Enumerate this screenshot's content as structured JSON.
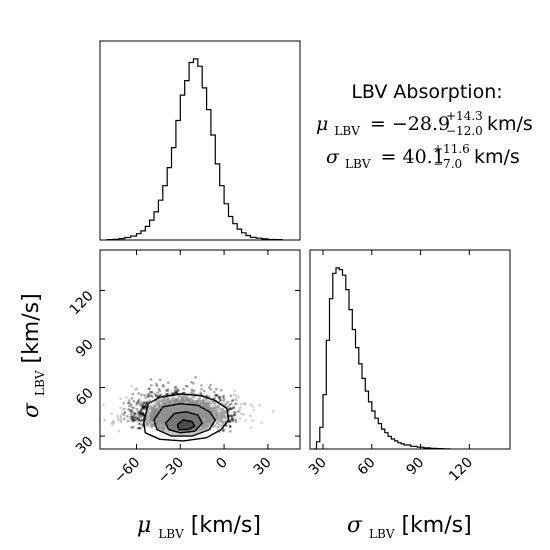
{
  "chart_data": [
    {
      "type": "histogram",
      "panel": "mu_LBV marginal",
      "x_range": [
        -85,
        52
      ],
      "bins": [
        [
          -80,
          0.002
        ],
        [
          -76,
          0.004
        ],
        [
          -72,
          0.008
        ],
        [
          -68,
          0.014
        ],
        [
          -64,
          0.022
        ],
        [
          -60,
          0.035
        ],
        [
          -57,
          0.05
        ],
        [
          -54,
          0.075
        ],
        [
          -51,
          0.11
        ],
        [
          -48,
          0.155
        ],
        [
          -45,
          0.22
        ],
        [
          -42,
          0.3
        ],
        [
          -39,
          0.4
        ],
        [
          -36,
          0.51
        ],
        [
          -33,
          0.66
        ],
        [
          -30,
          0.8
        ],
        [
          -27,
          0.88
        ],
        [
          -24,
          0.98
        ],
        [
          -21,
          1.0
        ],
        [
          -18,
          0.96
        ],
        [
          -15,
          0.84
        ],
        [
          -12,
          0.72
        ],
        [
          -9,
          0.58
        ],
        [
          -6,
          0.42
        ],
        [
          -3,
          0.3
        ],
        [
          0,
          0.2
        ],
        [
          3,
          0.13
        ],
        [
          6,
          0.09
        ],
        [
          9,
          0.06
        ],
        [
          12,
          0.04
        ],
        [
          15,
          0.025
        ],
        [
          18,
          0.015
        ],
        [
          22,
          0.01
        ],
        [
          26,
          0.006
        ],
        [
          30,
          0.003
        ],
        [
          35,
          0.002
        ]
      ]
    },
    {
      "type": "scatter",
      "panel": "joint mu_LBV vs sigma_LBV",
      "xlim": [
        -85,
        52
      ],
      "ylim": [
        22,
        145
      ],
      "x_ticks": [
        -60,
        -30,
        0,
        30
      ],
      "y_ticks": [
        30,
        60,
        90,
        120
      ],
      "xlabel_symbol": "μ",
      "xlabel_sub": "LBV",
      "xlabel_unit": "[km/s]",
      "ylabel_symbol": "σ",
      "ylabel_sub": "LBV",
      "ylabel_unit": "[km/s]",
      "center": [
        -28.9,
        40
      ],
      "contours": [
        {
          "level": "outer",
          "points": [
            [
              -55,
              38
            ],
            [
              -52,
              50
            ],
            [
              -44,
              54
            ],
            [
              -30,
              56
            ],
            [
              -16,
              55
            ],
            [
              -6,
              52
            ],
            [
              2,
              47
            ],
            [
              3,
              40
            ],
            [
              -2,
              34
            ],
            [
              -12,
              29
            ],
            [
              -28,
              27
            ],
            [
              -44,
              28
            ],
            [
              -54,
              32
            ]
          ]
        },
        {
          "level": "middle",
          "points": [
            [
              -48,
              40
            ],
            [
              -42,
              48
            ],
            [
              -30,
              50
            ],
            [
              -18,
              49
            ],
            [
              -10,
              45
            ],
            [
              -6,
              40
            ],
            [
              -10,
              34
            ],
            [
              -22,
              30
            ],
            [
              -36,
              30
            ],
            [
              -46,
              34
            ]
          ]
        },
        {
          "level": "inner",
          "points": [
            [
              -40,
              38
            ],
            [
              -34,
              44
            ],
            [
              -26,
              45
            ],
            [
              -18,
              43
            ],
            [
              -15,
              38
            ],
            [
              -20,
              33
            ],
            [
              -30,
              32
            ],
            [
              -38,
              34
            ]
          ]
        },
        {
          "level": "core",
          "points": [
            [
              -32,
              37
            ],
            [
              -28,
              40
            ],
            [
              -22,
              39
            ],
            [
              -20,
              36
            ],
            [
              -25,
              34
            ],
            [
              -31,
              34
            ]
          ]
        }
      ]
    },
    {
      "type": "histogram",
      "panel": "sigma_LBV marginal",
      "x_range": [
        22,
        145
      ],
      "x_ticks": [
        30,
        60,
        90,
        120
      ],
      "xlabel_symbol": "σ",
      "xlabel_sub": "LBV",
      "xlabel_unit": "[km/s]",
      "bins": [
        [
          24,
          0.0
        ],
        [
          26,
          0.04
        ],
        [
          28,
          0.12
        ],
        [
          30,
          0.3
        ],
        [
          32,
          0.6
        ],
        [
          34,
          0.83
        ],
        [
          36,
          0.97
        ],
        [
          38,
          1.0
        ],
        [
          40,
          0.99
        ],
        [
          42,
          0.96
        ],
        [
          44,
          0.88
        ],
        [
          46,
          0.77
        ],
        [
          48,
          0.66
        ],
        [
          50,
          0.56
        ],
        [
          52,
          0.47
        ],
        [
          54,
          0.39
        ],
        [
          56,
          0.32
        ],
        [
          58,
          0.26
        ],
        [
          60,
          0.21
        ],
        [
          62,
          0.17
        ],
        [
          64,
          0.14
        ],
        [
          66,
          0.11
        ],
        [
          68,
          0.09
        ],
        [
          70,
          0.07
        ],
        [
          72,
          0.055
        ],
        [
          74,
          0.045
        ],
        [
          76,
          0.035
        ],
        [
          78,
          0.028
        ],
        [
          80,
          0.022
        ],
        [
          84,
          0.015
        ],
        [
          88,
          0.01
        ],
        [
          92,
          0.006
        ],
        [
          96,
          0.004
        ],
        [
          100,
          0.002
        ],
        [
          104,
          0.001
        ]
      ]
    }
  ],
  "annotation": {
    "title": "LBV Absorption:",
    "mu_symbol": "μ",
    "mu_sub": "LBV",
    "mu_value": "= −28.9",
    "mu_plus": "+14.3",
    "mu_minus": "−12.0",
    "mu_unit": "km/s",
    "sigma_symbol": "σ",
    "sigma_sub": "LBV",
    "sigma_value": "= 40.1",
    "sigma_plus": "+11.6",
    "sigma_minus": "−7.0",
    "sigma_unit": "km/s"
  }
}
